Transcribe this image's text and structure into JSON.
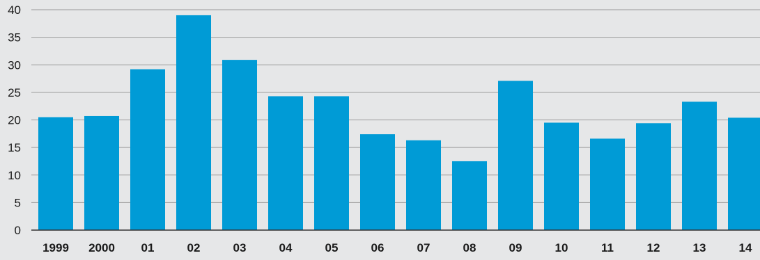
{
  "chart_data": {
    "type": "bar",
    "title": "",
    "xlabel": "",
    "ylabel": "",
    "categories": [
      "1999",
      "2000",
      "01",
      "02",
      "03",
      "04",
      "05",
      "06",
      "07",
      "08",
      "09",
      "10",
      "11",
      "12",
      "13",
      "14"
    ],
    "values": [
      20.5,
      20.7,
      29.2,
      39.0,
      30.9,
      24.3,
      24.3,
      17.4,
      16.3,
      12.5,
      27.1,
      19.5,
      16.6,
      19.4,
      23.3,
      20.4
    ],
    "ylim": [
      0,
      40
    ],
    "yticks": [
      0,
      5,
      10,
      15,
      20,
      25,
      30,
      35,
      40
    ],
    "grid": true,
    "colors": {
      "bar": "#009bd6",
      "background": "#e6e7e8",
      "grid": "#9a9a9a"
    }
  }
}
